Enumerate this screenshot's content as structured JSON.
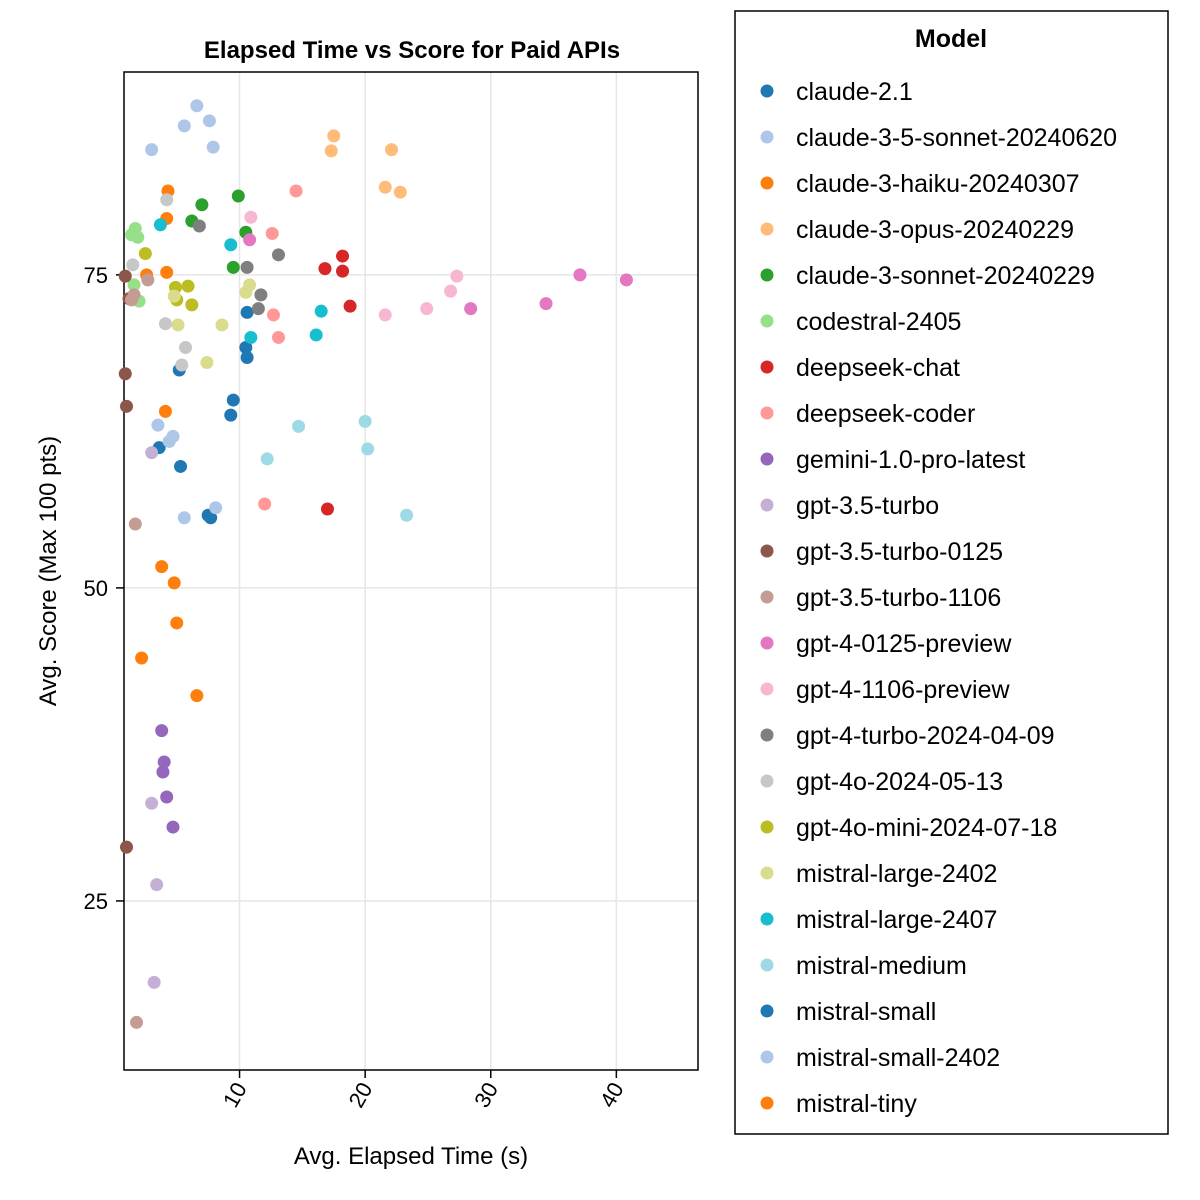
{
  "chart_data": {
    "type": "scatter",
    "title": "Elapsed Time vs Score for Paid APIs",
    "xlabel": "Avg. Elapsed Time (s)",
    "ylabel": "Avg. Score (Max 100 pts)",
    "xlim": [
      0.8,
      46.5
    ],
    "ylim": [
      11.5,
      91.2
    ],
    "xticks": [
      10,
      20,
      30,
      40
    ],
    "yticks": [
      25,
      50,
      75
    ],
    "grid": true,
    "legend": {
      "title": "Model",
      "placement": "right"
    },
    "series": [
      {
        "name": "claude-2.1",
        "color": "#1f77b4",
        "points": [
          [
            3.6,
            61.2
          ],
          [
            5.2,
            67.4
          ],
          [
            5.3,
            59.7
          ],
          [
            9.5,
            65.0
          ],
          [
            9.3,
            63.8
          ],
          [
            10.5,
            69.2
          ],
          [
            10.6,
            68.4
          ],
          [
            10.6,
            72.0
          ],
          [
            7.5,
            55.8
          ],
          [
            7.7,
            55.6
          ]
        ]
      },
      {
        "name": "claude-3-5-sonnet-20240620",
        "color": "#aec7e8",
        "points": [
          [
            3.0,
            85.0
          ],
          [
            5.6,
            86.9
          ],
          [
            6.6,
            88.5
          ],
          [
            7.6,
            87.3
          ],
          [
            7.9,
            85.2
          ],
          [
            3.5,
            63.0
          ],
          [
            4.4,
            61.7
          ],
          [
            4.7,
            62.1
          ],
          [
            5.6,
            55.6
          ],
          [
            8.1,
            56.4
          ]
        ]
      },
      {
        "name": "claude-3-haiku-20240307",
        "color": "#ff7f0e",
        "points": [
          [
            4.3,
            81.7
          ],
          [
            4.2,
            79.5
          ],
          [
            4.2,
            75.2
          ],
          [
            2.6,
            75.0
          ],
          [
            4.1,
            64.1
          ]
        ]
      },
      {
        "name": "claude-3-opus-20240229",
        "color": "#ffbb78",
        "points": [
          [
            17.5,
            86.1
          ],
          [
            17.3,
            84.9
          ],
          [
            22.1,
            85.0
          ],
          [
            21.6,
            82.0
          ],
          [
            22.8,
            81.6
          ]
        ]
      },
      {
        "name": "claude-3-sonnet-20240229",
        "color": "#2ca02c",
        "points": [
          [
            9.9,
            81.3
          ],
          [
            7.0,
            80.6
          ],
          [
            6.2,
            79.3
          ],
          [
            10.5,
            78.4
          ],
          [
            9.5,
            75.6
          ]
        ]
      },
      {
        "name": "codestral-2405",
        "color": "#98df8a",
        "points": [
          [
            1.7,
            78.7
          ],
          [
            1.4,
            78.2
          ],
          [
            1.9,
            78.0
          ],
          [
            1.6,
            74.2
          ],
          [
            2.0,
            72.9
          ]
        ]
      },
      {
        "name": "deepseek-chat",
        "color": "#d62728",
        "points": [
          [
            18.2,
            76.5
          ],
          [
            16.8,
            75.5
          ],
          [
            18.2,
            75.3
          ],
          [
            18.8,
            72.5
          ],
          [
            17.0,
            56.3
          ]
        ]
      },
      {
        "name": "deepseek-coder",
        "color": "#ff9896",
        "points": [
          [
            14.5,
            81.7
          ],
          [
            12.6,
            78.3
          ],
          [
            12.7,
            71.8
          ],
          [
            13.1,
            70.0
          ],
          [
            12.0,
            56.7
          ]
        ]
      },
      {
        "name": "gemini-1.0-pro-latest",
        "color": "#9467bd",
        "points": [
          [
            3.8,
            38.6
          ],
          [
            4.0,
            36.1
          ],
          [
            3.9,
            35.3
          ],
          [
            4.2,
            33.3
          ],
          [
            4.7,
            30.9
          ]
        ]
      },
      {
        "name": "gpt-3.5-turbo",
        "color": "#c5b0d5",
        "points": [
          [
            3.0,
            60.8
          ],
          [
            3.0,
            32.8
          ],
          [
            3.4,
            26.3
          ],
          [
            3.2,
            18.5
          ]
        ]
      },
      {
        "name": "gpt-3.5-turbo-0125",
        "color": "#8c564b",
        "points": [
          [
            0.9,
            74.9
          ],
          [
            1.2,
            73.1
          ],
          [
            0.9,
            67.1
          ],
          [
            1.0,
            64.5
          ],
          [
            1.0,
            29.3
          ]
        ]
      },
      {
        "name": "gpt-3.5-turbo-1106",
        "color": "#c49c94",
        "points": [
          [
            1.6,
            73.4
          ],
          [
            1.4,
            73.0
          ],
          [
            2.7,
            74.6
          ],
          [
            1.7,
            55.1
          ],
          [
            1.8,
            15.3
          ]
        ]
      },
      {
        "name": "gpt-4-0125-preview",
        "color": "#e377c2",
        "points": [
          [
            10.8,
            77.8
          ],
          [
            37.1,
            75.0
          ],
          [
            40.8,
            74.6
          ],
          [
            34.4,
            72.7
          ],
          [
            28.4,
            72.3
          ]
        ]
      },
      {
        "name": "gpt-4-1106-preview",
        "color": "#f7b6d2",
        "points": [
          [
            10.9,
            79.6
          ],
          [
            27.3,
            74.9
          ],
          [
            26.8,
            73.7
          ],
          [
            24.9,
            72.3
          ],
          [
            21.6,
            71.8
          ]
        ]
      },
      {
        "name": "gpt-4-turbo-2024-04-09",
        "color": "#7f7f7f",
        "points": [
          [
            6.8,
            78.9
          ],
          [
            10.6,
            75.6
          ],
          [
            13.1,
            76.6
          ],
          [
            11.7,
            73.4
          ],
          [
            11.5,
            72.3
          ]
        ]
      },
      {
        "name": "gpt-4o-2024-05-13",
        "color": "#c7c7c7",
        "points": [
          [
            1.5,
            75.8
          ],
          [
            4.2,
            81.0
          ],
          [
            4.1,
            71.1
          ],
          [
            5.7,
            69.2
          ],
          [
            5.4,
            67.8
          ]
        ]
      },
      {
        "name": "gpt-4o-mini-2024-07-18",
        "color": "#bcbd22",
        "points": [
          [
            2.5,
            76.7
          ],
          [
            4.9,
            74.0
          ],
          [
            5.0,
            73.0
          ],
          [
            5.9,
            74.1
          ],
          [
            6.2,
            72.6
          ]
        ]
      },
      {
        "name": "mistral-large-2402",
        "color": "#dbdb8d",
        "points": [
          [
            4.8,
            73.3
          ],
          [
            5.1,
            71.0
          ],
          [
            8.6,
            71.0
          ],
          [
            10.8,
            74.2
          ],
          [
            10.5,
            73.6
          ],
          [
            7.4,
            68.0
          ]
        ]
      },
      {
        "name": "mistral-large-2407",
        "color": "#17becf",
        "points": [
          [
            3.7,
            79.0
          ],
          [
            9.3,
            77.4
          ],
          [
            16.5,
            72.1
          ],
          [
            10.9,
            70.0
          ],
          [
            16.1,
            70.2
          ]
        ]
      },
      {
        "name": "mistral-medium",
        "color": "#9edae5",
        "points": [
          [
            14.7,
            62.9
          ],
          [
            20.0,
            63.3
          ],
          [
            20.2,
            61.1
          ],
          [
            12.2,
            60.3
          ],
          [
            23.3,
            55.8
          ]
        ]
      },
      {
        "name": "mistral-small",
        "color": "#1f77b4",
        "points": []
      },
      {
        "name": "mistral-small-2402",
        "color": "#aec7e8",
        "points": []
      },
      {
        "name": "mistral-tiny",
        "color": "#ff7f0e",
        "points": [
          [
            3.8,
            51.7
          ],
          [
            4.8,
            50.4
          ],
          [
            5.0,
            47.2
          ],
          [
            2.2,
            44.4
          ],
          [
            6.6,
            41.4
          ]
        ]
      }
    ]
  }
}
